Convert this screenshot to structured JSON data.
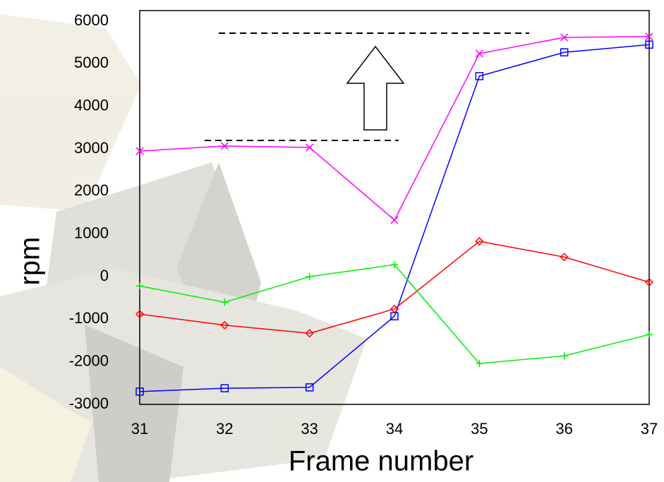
{
  "chart_data": {
    "type": "line",
    "x_label": "Frame number",
    "y_label": "rpm",
    "x": [
      31,
      32,
      33,
      34,
      35,
      36,
      37
    ],
    "xlim": [
      31,
      37
    ],
    "xticks": [
      31,
      32,
      33,
      34,
      35,
      36,
      37
    ],
    "ylim": [
      -3000,
      6250
    ],
    "yticks": [
      -3000,
      -2000,
      -1000,
      0,
      1000,
      2000,
      3000,
      4000,
      5000,
      6000
    ],
    "grid": false,
    "series": [
      {
        "color": "#ff00ff",
        "marker": "x",
        "values": [
          2950,
          3070,
          3035,
          1330,
          5240,
          5620,
          5640
        ]
      },
      {
        "color": "#0000ff",
        "marker": "square",
        "values": [
          -2700,
          -2620,
          -2600,
          -930,
          4710,
          5270,
          5450
        ]
      },
      {
        "color": "#ff0000",
        "marker": "diamond",
        "values": [
          -880,
          -1140,
          -1330,
          -760,
          830,
          460,
          -130
        ]
      },
      {
        "color": "#00ee00",
        "marker": "plus",
        "values": [
          -220,
          -600,
          0,
          280,
          -2040,
          -1860,
          -1360
        ]
      }
    ]
  }
}
